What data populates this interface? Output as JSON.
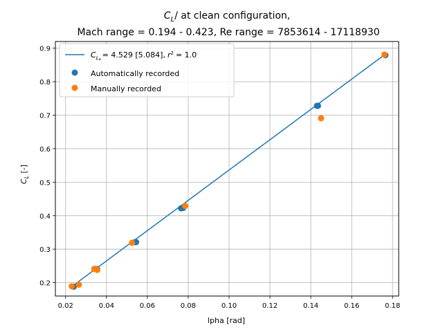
{
  "chart_data": {
    "type": "scatter",
    "title_line1": "C_L/ at clean configuration,",
    "title_line2": "Mach range = 0.194 - 0.423, Re range = 7853614 - 17118930",
    "xlabel": "\u001flpha [rad]",
    "ylabel": "C_L [-]",
    "xlim": [
      0.015,
      0.183
    ],
    "ylim": [
      0.16,
      0.92
    ],
    "xticks": [
      0.02,
      0.04,
      0.06,
      0.08,
      0.1,
      0.12,
      0.14,
      0.16,
      0.18
    ],
    "xtick_labels": [
      "0.02",
      "0.04",
      "0.06",
      "0.08",
      "0.10",
      "0.12",
      "0.14",
      "0.16",
      "0.18"
    ],
    "yticks": [
      0.2,
      0.3,
      0.4,
      0.5,
      0.6,
      0.7,
      0.8,
      0.9
    ],
    "ytick_labels": [
      "0.2",
      "0.3",
      "0.4",
      "0.5",
      "0.6",
      "0.7",
      "0.8",
      "0.9"
    ],
    "grid": true,
    "legend_position": "upper-left",
    "fit_line": {
      "label_prefix": "= 4.529 [5.084],",
      "r2_text": "= 1.0",
      "color": "#1f77b4",
      "x": [
        0.023,
        0.176
      ],
      "y": [
        0.188,
        0.88
      ]
    },
    "series": [
      {
        "name": "Automatically recorded",
        "color": "#1f77b4",
        "x": [
          0.024,
          0.0345,
          0.0355,
          0.054,
          0.0545,
          0.0765,
          0.0775,
          0.143,
          0.1435,
          0.1765
        ],
        "y": [
          0.188,
          0.241,
          0.24,
          0.321,
          0.321,
          0.422,
          0.423,
          0.728,
          0.728,
          0.879
        ]
      },
      {
        "name": "Manually recorded",
        "color": "#ff7f0e",
        "x": [
          0.023,
          0.0265,
          0.034,
          0.0355,
          0.0525,
          0.0785,
          0.145,
          0.176
        ],
        "y": [
          0.189,
          0.194,
          0.241,
          0.238,
          0.319,
          0.429,
          0.691,
          0.881
        ]
      }
    ]
  }
}
